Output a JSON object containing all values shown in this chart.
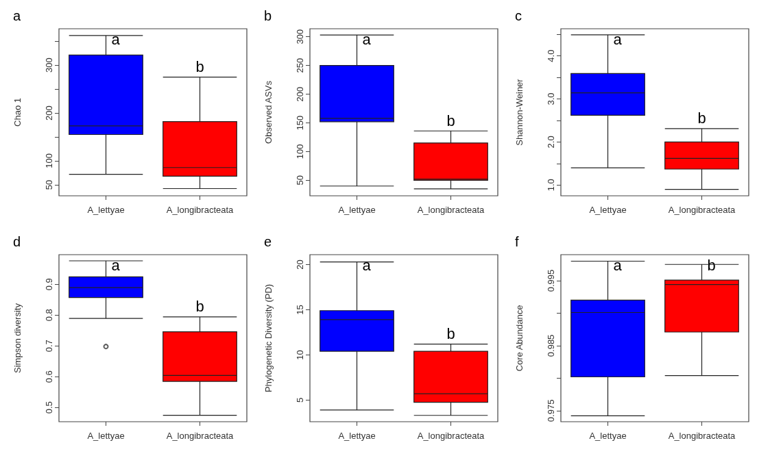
{
  "chart_data": [
    {
      "type": "box",
      "title": "a",
      "ylabel": "Chao 1",
      "categories": [
        "A_lettyae",
        "A_longibracteata"
      ],
      "colors": [
        "#0000ff",
        "#ff0000"
      ],
      "ylim": [
        27,
        376
      ],
      "yticks": [
        50,
        100,
        {
          "value": 150,
          "label": null
        },
        200,
        {
          "value": 250,
          "label": null
        },
        300,
        {
          "value": 350,
          "label": null
        }
      ],
      "grid": false,
      "boxes": [
        {
          "low": 72,
          "q1": 155,
          "median": 173,
          "q3": 321,
          "high": 362
        },
        {
          "low": 42,
          "q1": 68,
          "median": 86,
          "q3": 182,
          "high": 275
        }
      ],
      "annotations": [
        "a",
        "b"
      ]
    },
    {
      "type": "box",
      "title": "b",
      "ylabel": "Observed ASVs",
      "categories": [
        "A_lettyae",
        "A_longibracteata"
      ],
      "colors": [
        "#0000ff",
        "#ff0000"
      ],
      "ylim": [
        23,
        314
      ],
      "yticks": [
        50,
        100,
        150,
        200,
        250,
        300
      ],
      "grid": false,
      "boxes": [
        {
          "low": 40,
          "q1": 152,
          "median": 158,
          "q3": 250,
          "high": 303
        },
        {
          "low": 35,
          "q1": 50,
          "median": 52,
          "q3": 115,
          "high": 136
        }
      ],
      "annotations": [
        "a",
        "b"
      ]
    },
    {
      "type": "box",
      "title": "c",
      "ylabel": "Shannon-Weiner",
      "categories": [
        "A_lettyae",
        "A_longibracteata"
      ],
      "colors": [
        "#0000ff",
        "#ff0000"
      ],
      "ylim": [
        0.75,
        4.63
      ],
      "yticks": [
        {
          "value": 1,
          "label": "1.0"
        },
        {
          "value": 1.5,
          "label": null
        },
        {
          "value": 2,
          "label": "2.0"
        },
        {
          "value": 2.5,
          "label": null
        },
        {
          "value": 3,
          "label": "3.0"
        },
        {
          "value": 3.5,
          "label": null
        },
        {
          "value": 4,
          "label": "4.0"
        },
        {
          "value": 4.5,
          "label": null
        }
      ],
      "grid": false,
      "boxes": [
        {
          "low": 1.4,
          "q1": 2.62,
          "median": 3.14,
          "q3": 3.59,
          "high": 4.49
        },
        {
          "low": 0.9,
          "q1": 1.37,
          "median": 1.62,
          "q3": 2.0,
          "high": 2.31
        }
      ],
      "annotations": [
        "a",
        "b"
      ]
    },
    {
      "type": "box",
      "title": "d",
      "ylabel": "Simpson diversity",
      "categories": [
        "A_lettyae",
        "A_longibracteata"
      ],
      "colors": [
        "#0000ff",
        "#ff0000"
      ],
      "ylim": [
        0.454,
        0.996
      ],
      "yticks": [
        0.5,
        0.6,
        0.7,
        0.8,
        0.9
      ],
      "grid": false,
      "boxes": [
        {
          "low": 0.789,
          "q1": 0.857,
          "median": 0.889,
          "q3": 0.924,
          "high": 0.976,
          "outliers": [
            0.698
          ]
        },
        {
          "low": 0.475,
          "q1": 0.585,
          "median": 0.604,
          "q3": 0.746,
          "high": 0.794
        }
      ],
      "annotations": [
        "a",
        "b"
      ]
    },
    {
      "type": "box",
      "title": "e",
      "ylabel": "Phylogenetic Diversity (PD)",
      "categories": [
        "A_lettyae",
        "A_longibracteata"
      ],
      "colors": [
        "#0000ff",
        "#ff0000"
      ],
      "ylim": [
        2.6,
        21.1
      ],
      "yticks": [
        5,
        10,
        15,
        20
      ],
      "grid": false,
      "boxes": [
        {
          "low": 3.9,
          "q1": 10.4,
          "median": 13.9,
          "q3": 14.9,
          "high": 20.3
        },
        {
          "low": 3.3,
          "q1": 4.75,
          "median": 5.7,
          "q3": 10.4,
          "high": 11.2
        }
      ],
      "annotations": [
        "a",
        "b"
      ]
    },
    {
      "type": "box",
      "title": "f",
      "ylabel": "Core Abundance",
      "categories": [
        "A_lettyae",
        "A_longibracteata"
      ],
      "colors": [
        "#0000ff",
        "#ff0000"
      ],
      "ylim": [
        0.9733,
        0.999
      ],
      "yticks": [
        0.975,
        {
          "value": 0.98,
          "label": null
        },
        0.985,
        {
          "value": 0.99,
          "label": null
        },
        0.995
      ],
      "grid": false,
      "boxes": [
        {
          "low": 0.9742,
          "q1": 0.9802,
          "median": 0.9901,
          "q3": 0.992,
          "high": 0.998
        },
        {
          "low": 0.9804,
          "q1": 0.9871,
          "median": 0.9944,
          "q3": 0.9951,
          "high": 0.9975
        }
      ],
      "annotations": [
        "a",
        "b"
      ]
    }
  ]
}
